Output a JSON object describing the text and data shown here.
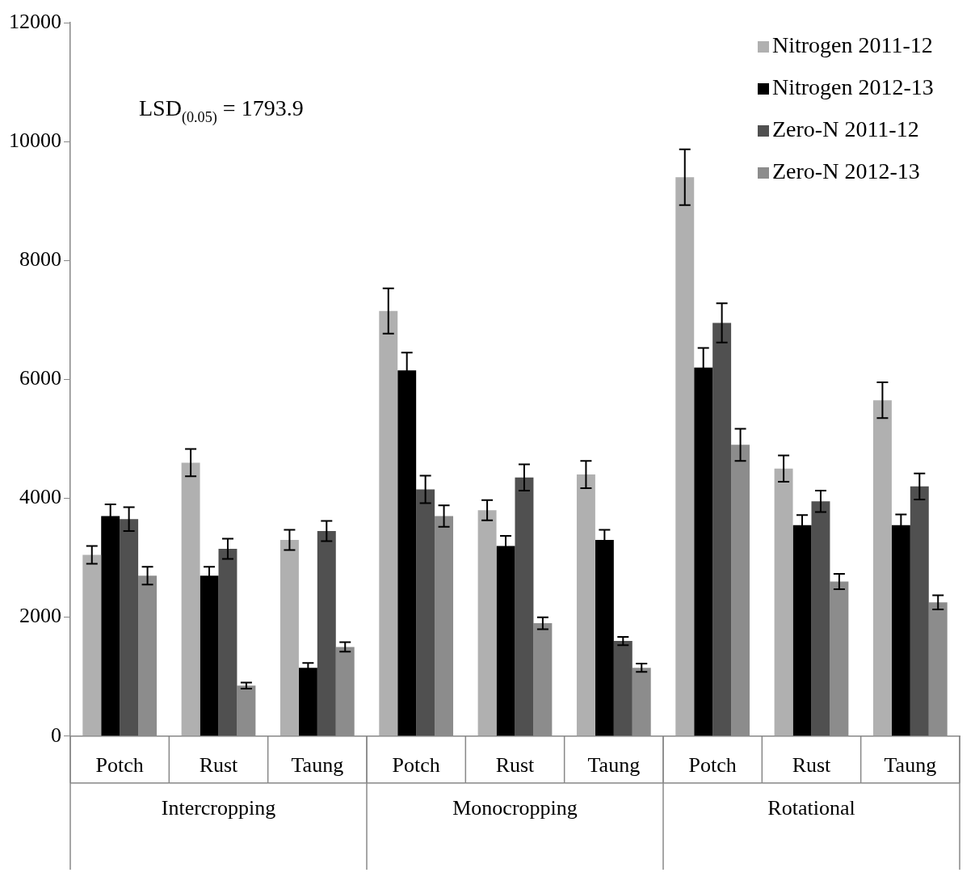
{
  "chart_data": {
    "type": "bar",
    "categories": [
      "Potch",
      "Rust",
      "Taung",
      "Potch",
      "Rust",
      "Taung",
      "Potch",
      "Rust",
      "Taung"
    ],
    "series": [
      {
        "name": "Nitrogen 2011-12",
        "color": "#b0b0b0",
        "values": [
          3050,
          4600,
          3300,
          7150,
          3800,
          4400,
          9400,
          4500,
          5650
        ],
        "errors": [
          150,
          230,
          170,
          380,
          170,
          230,
          470,
          220,
          300
        ]
      },
      {
        "name": "Nitrogen 2012-13",
        "color": "#000000",
        "values": [
          3700,
          2700,
          1150,
          6150,
          3200,
          3300,
          6200,
          3550,
          3550
        ],
        "errors": [
          200,
          150,
          80,
          300,
          170,
          170,
          330,
          170,
          180
        ]
      },
      {
        "name": "Zero-N 2011-12",
        "color": "#505050",
        "values": [
          3650,
          3150,
          3450,
          4150,
          4350,
          1600,
          6950,
          3950,
          4200
        ],
        "errors": [
          200,
          170,
          170,
          230,
          220,
          70,
          330,
          180,
          220
        ]
      },
      {
        "name": "Zero-N 2012-13",
        "color": "#8c8c8c",
        "values": [
          2700,
          850,
          1500,
          3700,
          1900,
          1150,
          4900,
          2600,
          2250
        ],
        "errors": [
          150,
          50,
          80,
          180,
          100,
          70,
          270,
          130,
          120
        ]
      }
    ],
    "ylim": [
      0,
      12000
    ],
    "yticks": [
      0,
      2000,
      4000,
      6000,
      8000,
      10000,
      12000
    ],
    "legend": "top right",
    "annotations": [
      "LSD$_{(0.05)}$ = 1793.9",
      "Intercropping",
      "Monocropping",
      "Rotational"
    ]
  }
}
